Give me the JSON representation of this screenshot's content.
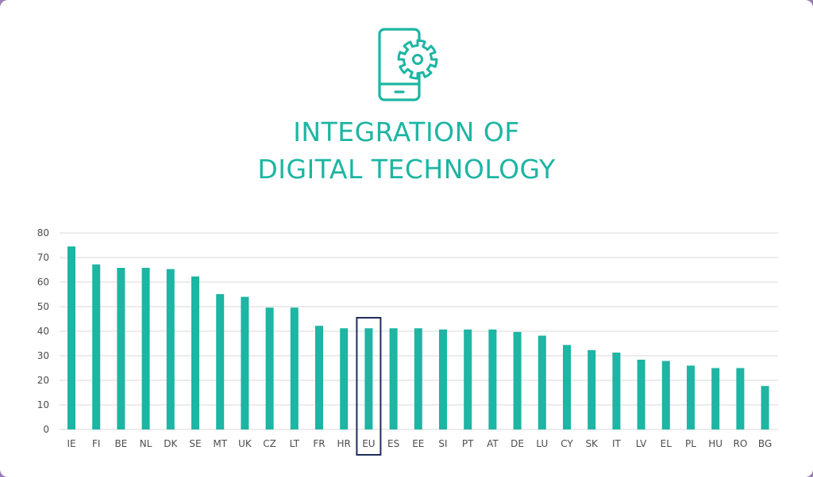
{
  "title_line1": "INTEGRATION OF",
  "title_line2": "DIGITAL TECHNOLOGY",
  "icon": "smartphone-gear-icon",
  "colors": {
    "bar": "#1db5a3",
    "title": "#1db5a3",
    "highlight_box": "#1f2d5a",
    "grid": "#d9d9d9"
  },
  "chart_data": {
    "type": "bar",
    "categories": [
      "IE",
      "FI",
      "BE",
      "NL",
      "DK",
      "SE",
      "MT",
      "UK",
      "CZ",
      "LT",
      "FR",
      "HR",
      "EU",
      "ES",
      "EE",
      "SI",
      "PT",
      "AT",
      "DE",
      "LU",
      "CY",
      "SK",
      "IT",
      "LV",
      "EL",
      "PL",
      "HU",
      "RO",
      "BG"
    ],
    "values": [
      74.5,
      67.2,
      65.8,
      65.8,
      65.3,
      62.3,
      55.1,
      54.0,
      49.6,
      49.6,
      42.2,
      41.2,
      41.2,
      41.2,
      41.2,
      40.7,
      40.7,
      40.7,
      39.7,
      38.2,
      34.4,
      32.3,
      31.3,
      28.4,
      27.9,
      26.0,
      25.0,
      25.0,
      17.7
    ],
    "highlight": "EU",
    "ylim": [
      0,
      80
    ],
    "yticks": [
      0,
      10,
      20,
      30,
      40,
      50,
      60,
      70,
      80
    ],
    "grid": true,
    "xlabel": "",
    "ylabel": ""
  }
}
